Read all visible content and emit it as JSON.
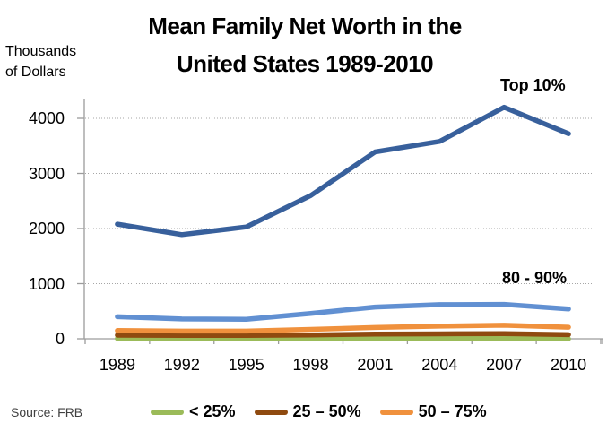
{
  "chart_data": {
    "type": "line",
    "title_lines": [
      "Mean Family Net Worth in the",
      "United States 1989-2010"
    ],
    "title": "Mean Family Net Worth in the United States 1989-2010",
    "ylabel_lines": [
      "Thousands",
      "of Dollars"
    ],
    "ylabel": "Thousands of Dollars",
    "x": [
      "1989",
      "1992",
      "1995",
      "1998",
      "2001",
      "2004",
      "2007",
      "2010"
    ],
    "yticks": [
      0,
      1000,
      2000,
      3000,
      4000
    ],
    "ylim": [
      0,
      4400
    ],
    "grid": "horizontal dotted gridlines at each 1000",
    "legend_position": "bottom",
    "axis_color": "#9C9C9C",
    "gridline_color": "#A6A6A6",
    "series": [
      {
        "name": "Top 10%",
        "color": "#38609C",
        "values": [
          2080,
          1890,
          2030,
          2600,
          3390,
          3580,
          4200,
          3720
        ],
        "label_on_chart": true
      },
      {
        "name": "80 - 90%",
        "color": "#6190D2",
        "values": [
          400,
          360,
          355,
          460,
          575,
          620,
          625,
          540
        ],
        "label_on_chart": true
      },
      {
        "name": "50 – 75%",
        "color": "#F0913D",
        "values": [
          150,
          140,
          140,
          170,
          205,
          230,
          245,
          210
        ],
        "in_legend": true
      },
      {
        "name": "25 – 50%",
        "color": "#8F4A10",
        "values": [
          65,
          60,
          60,
          70,
          85,
          90,
          95,
          75
        ],
        "in_legend": true
      },
      {
        "name": "< 25%",
        "color": "#9BBB59",
        "values": [
          5,
          5,
          5,
          5,
          5,
          5,
          5,
          0
        ],
        "in_legend": true
      }
    ],
    "legend_order": [
      "< 25%",
      "25 – 50%",
      "50 – 75%"
    ],
    "source": "Source: FRB"
  }
}
